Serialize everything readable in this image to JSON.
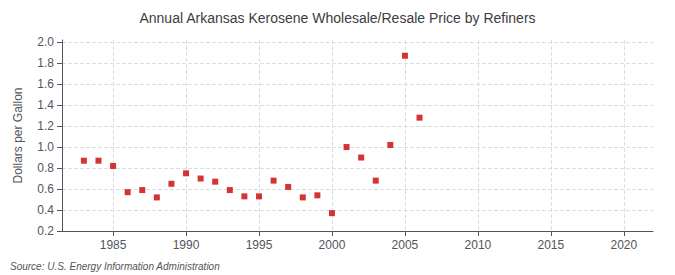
{
  "chart_data": {
    "type": "scatter",
    "title": "Annual Arkansas Kerosene Wholesale/Resale Price by Refiners",
    "ylabel": "Dollars per Gallon",
    "annotations": [
      "Source: U.S. Energy Information Administration"
    ],
    "x": [
      1983,
      1984,
      1985,
      1986,
      1987,
      1988,
      1989,
      1990,
      1991,
      1992,
      1993,
      1994,
      1995,
      1996,
      1997,
      1998,
      1999,
      2000,
      2001,
      2002,
      2003,
      2004,
      2005,
      2006
    ],
    "values": [
      0.87,
      0.87,
      0.82,
      0.57,
      0.59,
      0.52,
      0.65,
      0.75,
      0.7,
      0.67,
      0.59,
      0.53,
      0.53,
      0.68,
      0.62,
      0.52,
      0.54,
      0.37,
      1.0,
      0.9,
      0.68,
      1.02,
      1.87,
      1.28
    ],
    "color": "#cc0000",
    "marker": "square",
    "xlim": [
      1981.5,
      2022
    ],
    "ylim": [
      0.2,
      2.02
    ],
    "xticks": [
      1985,
      1990,
      1995,
      2000,
      2005,
      2010,
      2015,
      2020
    ],
    "yticks": [
      0.2,
      0.4,
      0.6,
      0.8,
      {
        "value": 1.0,
        "label": "1.0"
      },
      1.2,
      1.4,
      1.6,
      1.8,
      {
        "value": 2.0,
        "label": "2.0"
      }
    ],
    "grid": true
  }
}
